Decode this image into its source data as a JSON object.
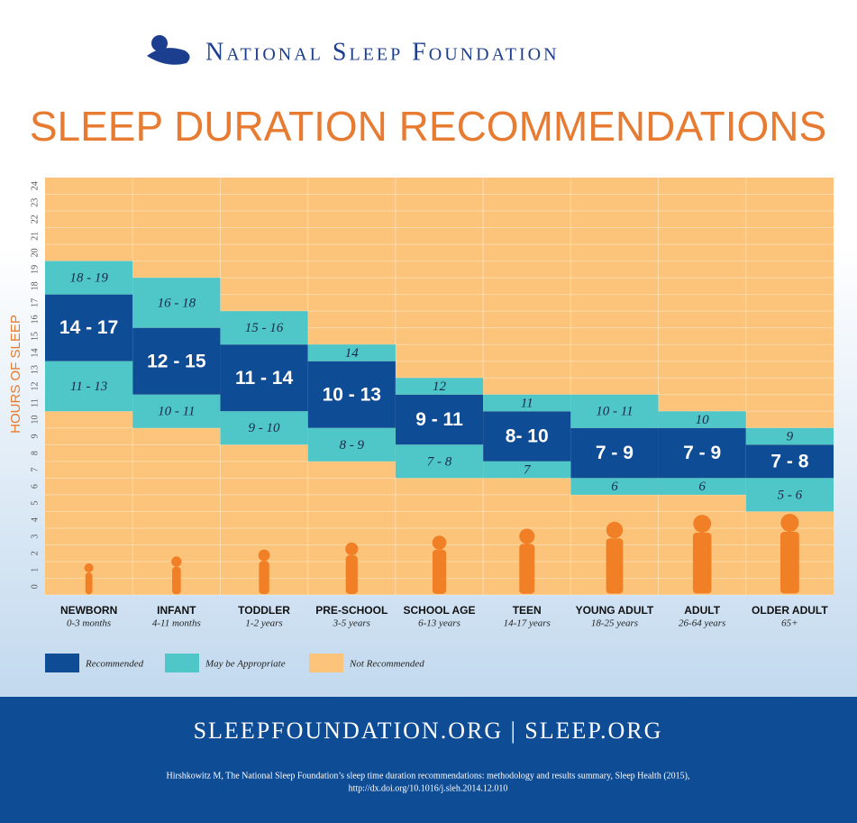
{
  "header": {
    "organization": "National Sleep Foundation"
  },
  "chart_data": {
    "type": "range-bar",
    "title": "SLEEP DURATION RECOMMENDATIONS",
    "y_label": "HOURS OF SLEEP",
    "categories": [
      "NEWBORN",
      "INFANT",
      "TODDLER",
      "PRE-SCHOOL",
      "SCHOOL AGE",
      "TEEN",
      "YOUNG ADULT",
      "ADULT",
      "OLDER ADULT"
    ],
    "category_sublabels": [
      "0-3 months",
      "4-11 months",
      "1-2 years",
      "3-5 years",
      "6-13 years",
      "14-17 years",
      "18-25 years",
      "26-64 years",
      "65+"
    ],
    "ylim": [
      0,
      25
    ],
    "yticks": [
      0,
      1,
      2,
      3,
      4,
      5,
      6,
      7,
      8,
      9,
      10,
      11,
      12,
      13,
      14,
      15,
      16,
      17,
      18,
      19,
      20,
      21,
      22,
      23,
      24
    ],
    "grid": true,
    "background": {
      "name": "Not Recommended",
      "color": "#fcc47a"
    },
    "series": [
      {
        "name": "Recommended",
        "color": "#0f4c96",
        "values": [
          [
            [
              14,
              17
            ]
          ],
          [
            [
              12,
              15
            ]
          ],
          [
            [
              11,
              14
            ]
          ],
          [
            [
              10,
              13
            ]
          ],
          [
            [
              9,
              11
            ]
          ],
          [
            [
              8,
              10
            ]
          ],
          [
            [
              7,
              9
            ]
          ],
          [
            [
              7,
              9
            ]
          ],
          [
            [
              7,
              8
            ]
          ]
        ],
        "value_labels": [
          [
            "14 - 17"
          ],
          [
            "12 - 15"
          ],
          [
            "11 - 14"
          ],
          [
            "10 - 13"
          ],
          [
            "9 - 11"
          ],
          [
            "8- 10"
          ],
          [
            "7 - 9"
          ],
          [
            "7 - 9"
          ],
          [
            "7 - 8"
          ]
        ]
      },
      {
        "name": "May be Appropriate",
        "color": "#4fc6c8",
        "values": [
          [
            [
              18,
              19
            ],
            [
              11,
              13
            ]
          ],
          [
            [
              16,
              18
            ],
            [
              10,
              11
            ]
          ],
          [
            [
              15,
              16
            ],
            [
              9,
              10
            ]
          ],
          [
            [
              14,
              14
            ],
            [
              8,
              9
            ]
          ],
          [
            [
              12,
              12
            ],
            [
              7,
              8
            ]
          ],
          [
            [
              11,
              11
            ],
            [
              7,
              7
            ]
          ],
          [
            [
              10,
              11
            ],
            [
              6,
              6
            ]
          ],
          [
            [
              10,
              10
            ],
            [
              6,
              6
            ]
          ],
          [
            [
              9,
              9
            ],
            [
              5,
              6
            ]
          ]
        ],
        "value_labels": [
          [
            "18 - 19",
            "11 - 13"
          ],
          [
            "16 - 18",
            "10 - 11"
          ],
          [
            "15 - 16",
            "9 - 10"
          ],
          [
            "14",
            "8 - 9"
          ],
          [
            "12",
            "7 - 8"
          ],
          [
            "11",
            "7"
          ],
          [
            "10 - 11",
            "6"
          ],
          [
            "10",
            "6"
          ],
          [
            "9",
            "5 - 6"
          ]
        ]
      }
    ]
  },
  "footer": {
    "links": "SLEEPFOUNDATION.ORG | SLEEP.ORG",
    "citation": [
      "Hirshkowitz M, The National Sleep Foundation’s sleep time duration recommendations: methodology and results summary, Sleep Health (2015),",
      "http://dx.doi.org/10.1016/j.sleh.2014.12.010"
    ]
  }
}
